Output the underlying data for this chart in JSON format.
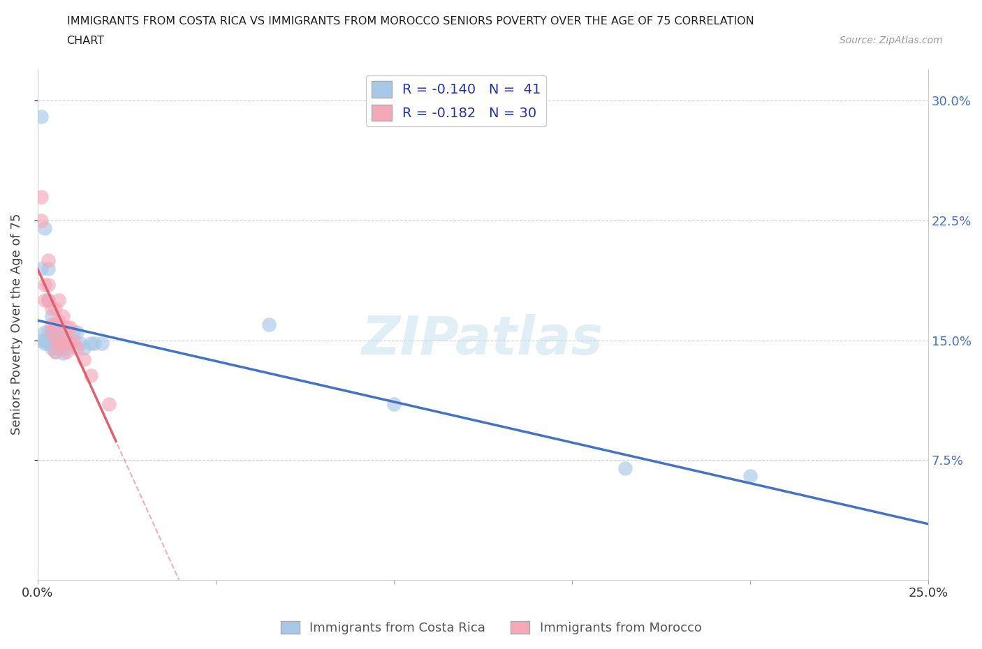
{
  "title_line1": "IMMIGRANTS FROM COSTA RICA VS IMMIGRANTS FROM MOROCCO SENIORS POVERTY OVER THE AGE OF 75 CORRELATION",
  "title_line2": "CHART",
  "source_text": "Source: ZipAtlas.com",
  "ylabel": "Seniors Poverty Over the Age of 75",
  "xlim": [
    0.0,
    0.25
  ],
  "ylim": [
    0.0,
    0.32
  ],
  "yticks": [
    0.075,
    0.15,
    0.225,
    0.3
  ],
  "ytick_labels": [
    "7.5%",
    "15.0%",
    "22.5%",
    "30.0%"
  ],
  "xticks": [
    0.0,
    0.05,
    0.1,
    0.15,
    0.2,
    0.25
  ],
  "xtick_labels": [
    "0.0%",
    "",
    "",
    "",
    "",
    "25.0%"
  ],
  "legend_label1": "R = -0.140   N =  41",
  "legend_label2": "R = -0.182   N = 30",
  "legend_color1": "#a8c8e8",
  "legend_color2": "#f4a8b8",
  "scatter_color1": "#a8c8e8",
  "scatter_color2": "#f4a8b8",
  "line_color1": "#4472c4",
  "line_color2": "#e06070",
  "watermark_text": "ZIPatlas",
  "background_color": "#ffffff",
  "grid_color": "#cccccc",
  "title_color": "#222222",
  "axis_label_color": "#444444",
  "tick_color_right": "#4472c4",
  "tick_color_left": "#888888",
  "costa_rica_x": [
    0.001,
    0.001,
    0.001,
    0.002,
    0.002,
    0.002,
    0.002,
    0.003,
    0.003,
    0.003,
    0.003,
    0.003,
    0.004,
    0.004,
    0.004,
    0.004,
    0.004,
    0.005,
    0.005,
    0.005,
    0.005,
    0.006,
    0.006,
    0.006,
    0.006,
    0.007,
    0.007,
    0.008,
    0.008,
    0.009,
    0.01,
    0.011,
    0.012,
    0.013,
    0.015,
    0.016,
    0.018,
    0.065,
    0.1,
    0.165,
    0.2
  ],
  "costa_rica_y": [
    0.29,
    0.195,
    0.15,
    0.22,
    0.155,
    0.15,
    0.148,
    0.195,
    0.175,
    0.155,
    0.15,
    0.148,
    0.165,
    0.155,
    0.15,
    0.148,
    0.145,
    0.155,
    0.15,
    0.148,
    0.143,
    0.155,
    0.152,
    0.15,
    0.145,
    0.148,
    0.142,
    0.15,
    0.145,
    0.148,
    0.155,
    0.155,
    0.148,
    0.145,
    0.148,
    0.148,
    0.148,
    0.16,
    0.11,
    0.07,
    0.065
  ],
  "morocco_x": [
    0.001,
    0.001,
    0.002,
    0.002,
    0.003,
    0.003,
    0.003,
    0.004,
    0.004,
    0.004,
    0.005,
    0.005,
    0.005,
    0.005,
    0.006,
    0.006,
    0.006,
    0.007,
    0.007,
    0.007,
    0.008,
    0.008,
    0.008,
    0.009,
    0.009,
    0.01,
    0.011,
    0.013,
    0.015,
    0.02
  ],
  "morocco_y": [
    0.24,
    0.225,
    0.185,
    0.175,
    0.2,
    0.185,
    0.175,
    0.17,
    0.16,
    0.155,
    0.17,
    0.16,
    0.15,
    0.143,
    0.175,
    0.162,
    0.148,
    0.165,
    0.155,
    0.148,
    0.158,
    0.15,
    0.143,
    0.158,
    0.148,
    0.15,
    0.145,
    0.138,
    0.128,
    0.11
  ]
}
